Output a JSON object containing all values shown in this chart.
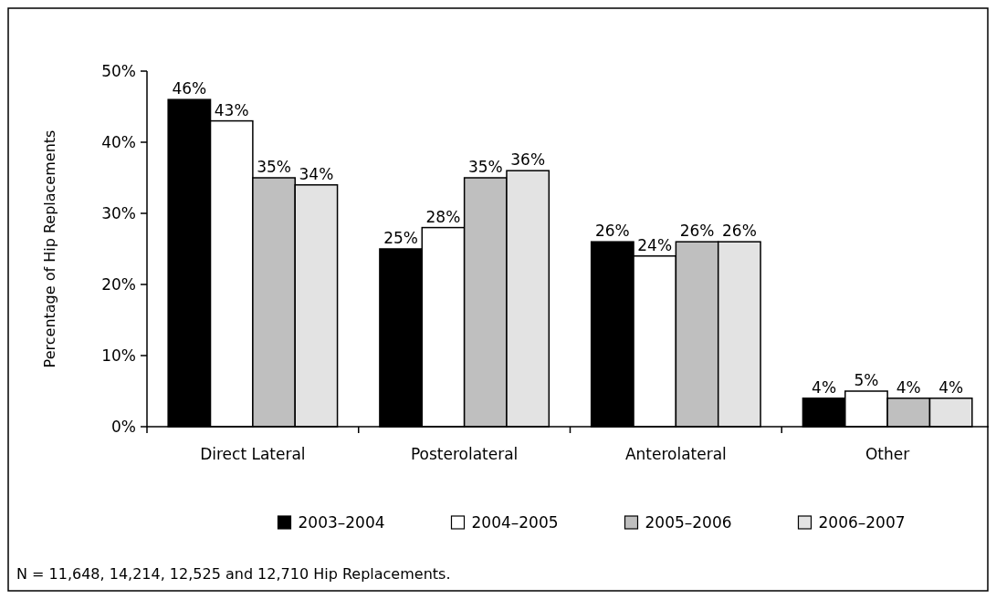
{
  "chart_data": {
    "type": "bar",
    "ylabel": "Percentage of Hip Replacements",
    "categories": [
      "Direct Lateral",
      "Posterolateral",
      "Anterolateral",
      "Other"
    ],
    "series": [
      {
        "name": "2003–2004",
        "color": "#000000",
        "values": [
          46,
          25,
          26,
          4
        ],
        "value_labels": [
          "46%",
          "25%",
          "26%",
          "4%"
        ]
      },
      {
        "name": "2004–2005",
        "color": "#ffffff",
        "values": [
          43,
          28,
          24,
          5
        ],
        "value_labels": [
          "43%",
          "28%",
          "24%",
          "5%"
        ]
      },
      {
        "name": "2005–2006",
        "color": "#bfbfbf",
        "values": [
          35,
          35,
          26,
          4
        ],
        "value_labels": [
          "35%",
          "35%",
          "26%",
          "4%"
        ]
      },
      {
        "name": "2006–2007",
        "color": "#e3e3e3",
        "values": [
          34,
          36,
          26,
          4
        ],
        "value_labels": [
          "34%",
          "36%",
          "26%",
          "4%"
        ]
      }
    ],
    "ylim": [
      0,
      50
    ],
    "yticks": [
      {
        "value": 0,
        "label": "0%"
      },
      {
        "value": 10,
        "label": "10%"
      },
      {
        "value": 20,
        "label": "20%"
      },
      {
        "value": 30,
        "label": "30%"
      },
      {
        "value": 40,
        "label": "40%"
      },
      {
        "value": 50,
        "label": "50%"
      }
    ],
    "grid": false,
    "legend": "bottom",
    "annotations": [
      "N = 11,648, 14,214, 12,525 and 12,710 Hip Replacements."
    ]
  }
}
